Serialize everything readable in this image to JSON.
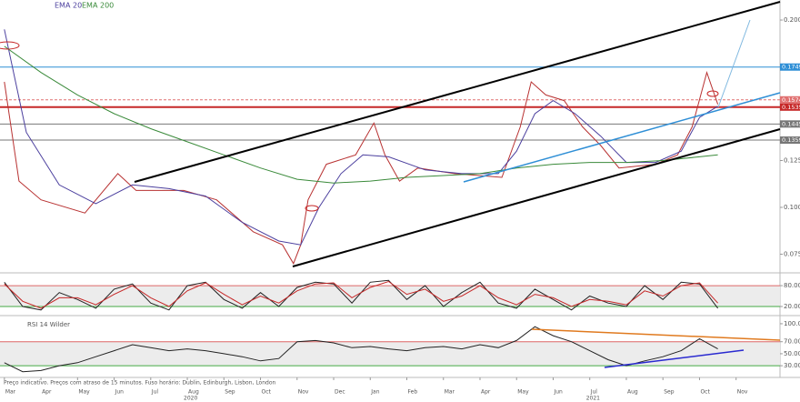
{
  "chart_data": [
    {
      "type": "line",
      "x": [
        0,
        0.4,
        1.0,
        2.2,
        3.1,
        3.6,
        4.9,
        5.8,
        6.8,
        7.6,
        7.9,
        8.1,
        8.3,
        8.8,
        9.6,
        10.1,
        10.4,
        10.8,
        11.3,
        12.3,
        13.6,
        14.1,
        14.4,
        14.8,
        15.3,
        15.8,
        16.3,
        16.8,
        17.8,
        18.4,
        18.8,
        19.2,
        19.5
      ],
      "values": [
        0.167,
        0.114,
        0.104,
        0.097,
        0.118,
        0.109,
        0.109,
        0.104,
        0.087,
        0.08,
        0.07,
        0.08,
        0.104,
        0.123,
        0.128,
        0.145,
        0.128,
        0.114,
        0.121,
        0.118,
        0.116,
        0.143,
        0.167,
        0.16,
        0.157,
        0.143,
        0.133,
        0.121,
        0.123,
        0.128,
        0.143,
        0.172,
        0.155
      ],
      "color": "#b83232",
      "series": [
        {
          "name": "EMA 20",
          "color": "#4b3f9e",
          "x": [
            0,
            0.6,
            1.5,
            2.5,
            3.5,
            4.5,
            5.5,
            6.5,
            7.5,
            8.1,
            8.6,
            9.2,
            9.8,
            10.5,
            11.5,
            12.5,
            13.5,
            14.0,
            14.5,
            15.0,
            15.6,
            16.3,
            17.0,
            17.8,
            18.5,
            19.0,
            19.5
          ],
          "values": [
            0.195,
            0.14,
            0.112,
            0.102,
            0.112,
            0.11,
            0.106,
            0.092,
            0.082,
            0.08,
            0.1,
            0.118,
            0.128,
            0.127,
            0.12,
            0.118,
            0.118,
            0.13,
            0.15,
            0.157,
            0.15,
            0.138,
            0.124,
            0.124,
            0.13,
            0.148,
            0.154
          ]
        },
        {
          "name": "EMA 200",
          "color": "#3a8a3a",
          "x": [
            0,
            1,
            2,
            3,
            4,
            5,
            6,
            7,
            8,
            9,
            10,
            11,
            12,
            13,
            14,
            15,
            16,
            17,
            18,
            19,
            19.5
          ],
          "values": [
            0.186,
            0.172,
            0.16,
            0.15,
            0.142,
            0.135,
            0.128,
            0.121,
            0.115,
            0.113,
            0.114,
            0.116,
            0.117,
            0.118,
            0.121,
            0.123,
            0.124,
            0.124,
            0.125,
            0.127,
            0.128
          ]
        }
      ],
      "levels": [
        {
          "value": 0.1749,
          "color": "#2f8fd6"
        },
        {
          "value": 0.1574,
          "color": "#e07070"
        },
        {
          "value": 0.1535,
          "color": "#c62828"
        },
        {
          "value": 0.1445,
          "color": "#777777"
        },
        {
          "value": 0.1359,
          "color": "#777777"
        }
      ],
      "xlim": [
        -0.12,
        21.2
      ],
      "ylim": [
        0.066,
        0.2107
      ],
      "yticks": [
        {
          "value": 0.2,
          "label": "0.2000"
        },
        {
          "value": 0.125,
          "label": "0.1250"
        },
        {
          "value": 0.1,
          "label": "0.1000"
        },
        {
          "value": 0.075,
          "label": "0.0750"
        }
      ],
      "xticks": [
        {
          "value": 0,
          "label": "Mar"
        },
        {
          "value": 1,
          "label": "Apr"
        },
        {
          "value": 2,
          "label": "May"
        },
        {
          "value": 3,
          "label": "Jun"
        },
        {
          "value": 4,
          "label": "Jul"
        },
        {
          "value": 5,
          "label": "Aug"
        },
        {
          "value": 6,
          "label": "Sep"
        },
        {
          "value": 7,
          "label": "Oct"
        },
        {
          "value": 8,
          "label": "Nov"
        },
        {
          "value": 9,
          "label": "Dec"
        },
        {
          "value": 10,
          "label": "Jan"
        },
        {
          "value": 11,
          "label": "Feb"
        },
        {
          "value": 12,
          "label": "Mar"
        },
        {
          "value": 13,
          "label": "Apr"
        },
        {
          "value": 14,
          "label": "May"
        },
        {
          "value": 15,
          "label": "Jun"
        },
        {
          "value": 16,
          "label": "Jul"
        },
        {
          "value": 17,
          "label": "Aug"
        },
        {
          "value": 18,
          "label": "Sep"
        },
        {
          "value": 19,
          "label": "Oct"
        },
        {
          "value": 20,
          "label": "Nov"
        }
      ],
      "year_ticks": [
        {
          "value": 4.9,
          "label": "2020"
        },
        {
          "value": 15.9,
          "label": "2021"
        }
      ]
    },
    {
      "type": "line",
      "x": [
        0,
        0.5,
        1,
        1.5,
        2,
        2.5,
        3,
        3.5,
        4,
        4.5,
        5,
        5.5,
        6,
        6.5,
        7,
        7.5,
        8,
        8.5,
        9,
        9.5,
        10,
        10.5,
        11,
        11.5,
        12,
        12.5,
        13,
        13.5,
        14,
        14.5,
        15,
        15.5,
        16,
        16.5,
        17,
        17.5,
        18,
        18.5,
        19,
        19.5
      ],
      "series": [
        {
          "color": "#222222",
          "values": [
            90,
            20,
            10,
            60,
            40,
            15,
            70,
            85,
            30,
            10,
            80,
            90,
            40,
            15,
            60,
            20,
            75,
            90,
            85,
            30,
            90,
            95,
            40,
            80,
            20,
            60,
            90,
            30,
            15,
            70,
            40,
            10,
            50,
            30,
            20,
            80,
            40,
            90,
            85,
            15
          ]
        },
        {
          "color": "#c62828",
          "values": [
            85,
            35,
            15,
            45,
            45,
            25,
            55,
            80,
            45,
            20,
            65,
            88,
            55,
            25,
            50,
            30,
            65,
            85,
            88,
            45,
            75,
            92,
            55,
            70,
            35,
            50,
            80,
            45,
            25,
            55,
            45,
            20,
            40,
            35,
            25,
            65,
            50,
            80,
            88,
            30
          ]
        }
      ],
      "hlines": [
        {
          "value": 80,
          "color": "#d66"
        },
        {
          "value": 20,
          "color": "#4a4"
        }
      ],
      "xlim": [
        -0.12,
        21.2
      ],
      "ylim": [
        -1,
        109
      ],
      "yticks": [
        {
          "value": 80,
          "label": "80.00"
        },
        {
          "value": 20,
          "label": "20.00"
        }
      ]
    },
    {
      "type": "line",
      "title": "RSI 14 Wilder",
      "x": [
        0,
        0.5,
        1,
        1.5,
        2,
        2.5,
        3,
        3.5,
        4,
        4.5,
        5,
        5.5,
        6,
        6.5,
        7,
        7.5,
        8,
        8.5,
        9,
        9.5,
        10,
        10.5,
        11,
        11.5,
        12,
        12.5,
        13,
        13.5,
        14,
        14.5,
        15,
        15.5,
        16,
        16.5,
        17,
        17.5,
        18,
        18.5,
        19,
        19.5
      ],
      "series": [
        {
          "color": "#222222",
          "values": [
            35,
            20,
            22,
            30,
            35,
            45,
            55,
            65,
            60,
            55,
            58,
            55,
            50,
            45,
            38,
            42,
            70,
            72,
            68,
            60,
            62,
            58,
            55,
            60,
            62,
            58,
            65,
            60,
            72,
            95,
            80,
            70,
            55,
            40,
            30,
            38,
            45,
            55,
            75,
            58
          ]
        }
      ],
      "hlines": [
        {
          "value": 70,
          "color": "#d66"
        },
        {
          "value": 30,
          "color": "#4a4"
        }
      ],
      "xlim": [
        -0.12,
        21.2
      ],
      "ylim": [
        15,
        109
      ],
      "yticks": [
        {
          "value": 100,
          "label": "100.00"
        },
        {
          "value": 70,
          "label": "70.00"
        },
        {
          "value": 50,
          "label": "50.00"
        },
        {
          "value": 30,
          "label": "30.00"
        }
      ]
    }
  ],
  "footer": "Preço indicativo. Preços com atraso de 15 minutos.   Fuso horário: Dublin, Edinburgh, Lisbon, London"
}
